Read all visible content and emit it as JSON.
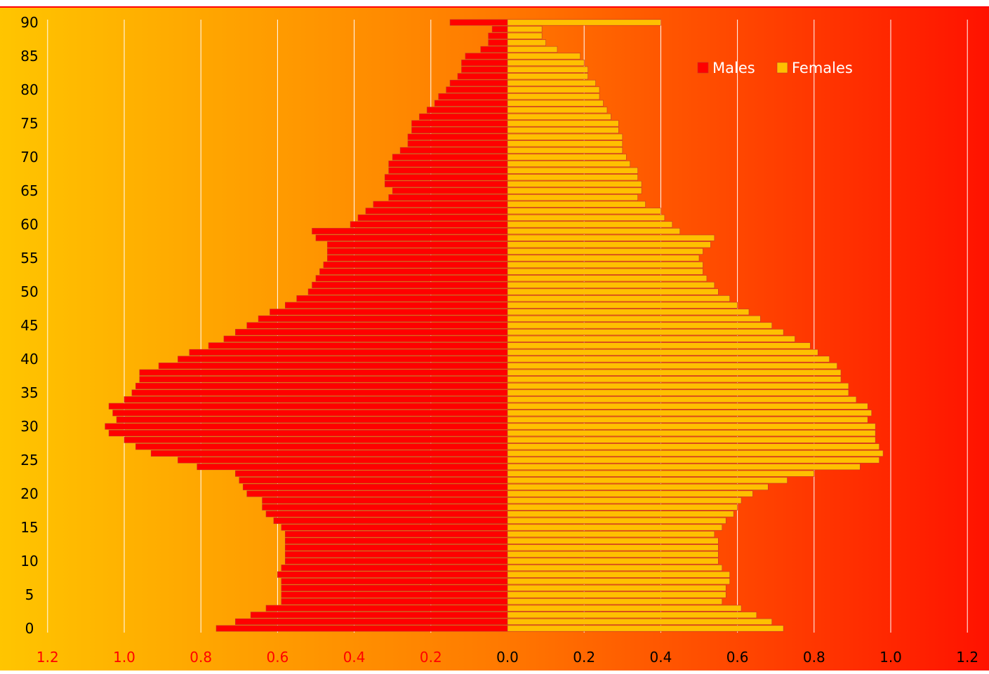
{
  "chart_data": {
    "type": "bar",
    "orientation": "horizontal",
    "layout": "population-pyramid",
    "title": "",
    "xlabel": "",
    "ylabel": "",
    "xlim": [
      -1.2,
      1.2
    ],
    "x_ticks": [
      "1.2",
      "1.0",
      "0.8",
      "0.6",
      "0.4",
      "0.2",
      "0.0",
      "0.2",
      "0.4",
      "0.6",
      "0.8",
      "1.0",
      "1.2"
    ],
    "x_tick_values": [
      -1.2,
      -1.0,
      -0.8,
      -0.6,
      -0.4,
      -0.2,
      0.0,
      0.2,
      0.4,
      0.6,
      0.8,
      1.0,
      1.2
    ],
    "y_ticks": [
      "0",
      "5",
      "10",
      "15",
      "20",
      "25",
      "30",
      "35",
      "40",
      "45",
      "50",
      "55",
      "60",
      "65",
      "70",
      "75",
      "80",
      "85",
      "90"
    ],
    "y_tick_values": [
      0,
      5,
      10,
      15,
      20,
      25,
      30,
      35,
      40,
      45,
      50,
      55,
      60,
      65,
      70,
      75,
      80,
      85,
      90
    ],
    "ages": [
      0,
      1,
      2,
      3,
      4,
      5,
      6,
      7,
      8,
      9,
      10,
      11,
      12,
      13,
      14,
      15,
      16,
      17,
      18,
      19,
      20,
      21,
      22,
      23,
      24,
      25,
      26,
      27,
      28,
      29,
      30,
      31,
      32,
      33,
      34,
      35,
      36,
      37,
      38,
      39,
      40,
      41,
      42,
      43,
      44,
      45,
      46,
      47,
      48,
      49,
      50,
      51,
      52,
      53,
      54,
      55,
      56,
      57,
      58,
      59,
      60,
      61,
      62,
      63,
      64,
      65,
      66,
      67,
      68,
      69,
      70,
      71,
      72,
      73,
      74,
      75,
      76,
      77,
      78,
      79,
      80,
      81,
      82,
      83,
      84,
      85,
      86,
      87,
      88,
      89,
      90
    ],
    "grid": "vertical",
    "legend_position": "top-right",
    "series": [
      {
        "name": "Males",
        "color": "#ff0000",
        "values": [
          0.76,
          0.71,
          0.67,
          0.63,
          0.59,
          0.59,
          0.59,
          0.59,
          0.6,
          0.59,
          0.58,
          0.58,
          0.58,
          0.58,
          0.58,
          0.59,
          0.61,
          0.63,
          0.64,
          0.64,
          0.68,
          0.69,
          0.7,
          0.71,
          0.81,
          0.86,
          0.93,
          0.97,
          1.0,
          1.04,
          1.05,
          1.02,
          1.03,
          1.04,
          1.0,
          0.98,
          0.97,
          0.96,
          0.96,
          0.91,
          0.86,
          0.83,
          0.78,
          0.74,
          0.71,
          0.68,
          0.65,
          0.62,
          0.58,
          0.55,
          0.52,
          0.51,
          0.5,
          0.49,
          0.48,
          0.47,
          0.47,
          0.47,
          0.5,
          0.51,
          0.41,
          0.39,
          0.37,
          0.35,
          0.31,
          0.3,
          0.32,
          0.32,
          0.31,
          0.31,
          0.3,
          0.28,
          0.26,
          0.26,
          0.25,
          0.25,
          0.23,
          0.21,
          0.19,
          0.18,
          0.16,
          0.15,
          0.13,
          0.12,
          0.12,
          0.11,
          0.07,
          0.05,
          0.05,
          0.04,
          0.15
        ]
      },
      {
        "name": "Females",
        "color": "#ffc000",
        "values": [
          0.72,
          0.69,
          0.65,
          0.61,
          0.56,
          0.57,
          0.57,
          0.58,
          0.58,
          0.56,
          0.55,
          0.55,
          0.55,
          0.55,
          0.54,
          0.56,
          0.57,
          0.59,
          0.6,
          0.61,
          0.64,
          0.68,
          0.73,
          0.8,
          0.92,
          0.97,
          0.98,
          0.97,
          0.96,
          0.96,
          0.96,
          0.94,
          0.95,
          0.94,
          0.91,
          0.89,
          0.89,
          0.87,
          0.87,
          0.86,
          0.84,
          0.81,
          0.79,
          0.75,
          0.72,
          0.69,
          0.66,
          0.63,
          0.6,
          0.58,
          0.55,
          0.54,
          0.52,
          0.51,
          0.51,
          0.5,
          0.51,
          0.53,
          0.54,
          0.45,
          0.43,
          0.41,
          0.4,
          0.36,
          0.34,
          0.35,
          0.35,
          0.34,
          0.34,
          0.32,
          0.31,
          0.3,
          0.3,
          0.3,
          0.29,
          0.29,
          0.27,
          0.26,
          0.25,
          0.24,
          0.24,
          0.23,
          0.21,
          0.21,
          0.2,
          0.19,
          0.13,
          0.1,
          0.09,
          0.09,
          0.4
        ]
      }
    ]
  },
  "colors": {
    "bg_left": "#ffc500",
    "bg_mid": "#ff7a00",
    "bg_right": "#ff1200",
    "grid": "#ffffff",
    "left_tick_label": "#ff0000",
    "right_tick_label": "#000000",
    "bar_edge": "#c0392b"
  }
}
